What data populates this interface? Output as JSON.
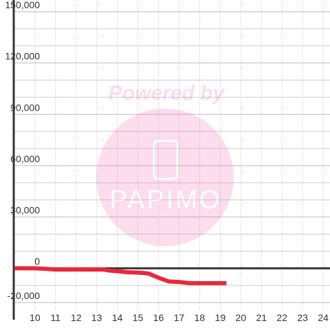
{
  "chart_data": {
    "type": "line",
    "x": [
      9,
      10,
      10.5,
      11,
      12,
      13,
      13.3,
      13.6,
      14,
      14.5,
      15,
      15.5,
      16,
      16.5,
      17,
      17.5,
      18,
      19,
      19.3
    ],
    "series": [
      {
        "color": "#e8283c",
        "values": [
          0,
          0,
          -300,
          -700,
          -700,
          -700,
          -700,
          -1300,
          -1700,
          -2300,
          -2500,
          -3000,
          -5500,
          -7700,
          -8000,
          -8700,
          -8700,
          -8700,
          -8700
        ]
      }
    ],
    "xlim": [
      8.97,
      24.33
    ],
    "xticks": [
      10,
      11,
      12,
      13,
      14,
      15,
      16,
      17,
      18,
      19,
      20,
      21,
      22,
      23,
      24
    ],
    "ylim": [
      -20000,
      150000
    ],
    "yticks": [
      {
        "value": -20000,
        "label": "-20,000"
      },
      0,
      {
        "value": 30000,
        "label": "30,000"
      },
      {
        "value": 60000,
        "label": "60,000"
      },
      {
        "value": 90000,
        "label": "90,000"
      },
      {
        "value": 120000,
        "label": "120,000"
      },
      {
        "value": 150000,
        "label": "150,000"
      }
    ],
    "yminorticks": [
      -10000,
      10000,
      20000,
      40000,
      50000,
      70000,
      80000,
      100000,
      110000,
      130000,
      140000
    ],
    "grid": true,
    "watermark": {
      "line1": "Powered by",
      "line2": "PAPIMO"
    }
  }
}
